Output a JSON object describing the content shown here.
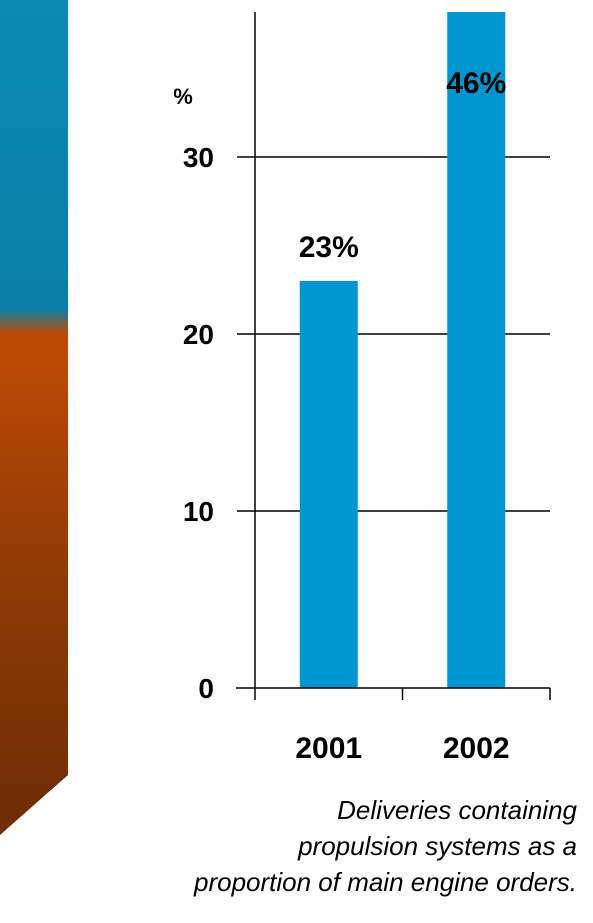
{
  "chart_data": {
    "type": "bar",
    "categories": [
      "2001",
      "2002"
    ],
    "values": [
      23,
      46
    ],
    "data_labels": [
      "23%",
      "46%"
    ],
    "ylabel": "%",
    "yticks": [
      "0",
      "10",
      "20",
      "30"
    ],
    "ylim": [
      0,
      30
    ],
    "grid": true,
    "bar_color": "#0095D0",
    "note": "2002 bar extends beyond the top of the axis range"
  },
  "caption": {
    "line1": "Deliveries containing",
    "line2": "propulsion systems as a",
    "line3": "proportion of main engine orders."
  },
  "colors": {
    "band_top": "#0a84ad",
    "band_bottom": "#7a2e04"
  }
}
